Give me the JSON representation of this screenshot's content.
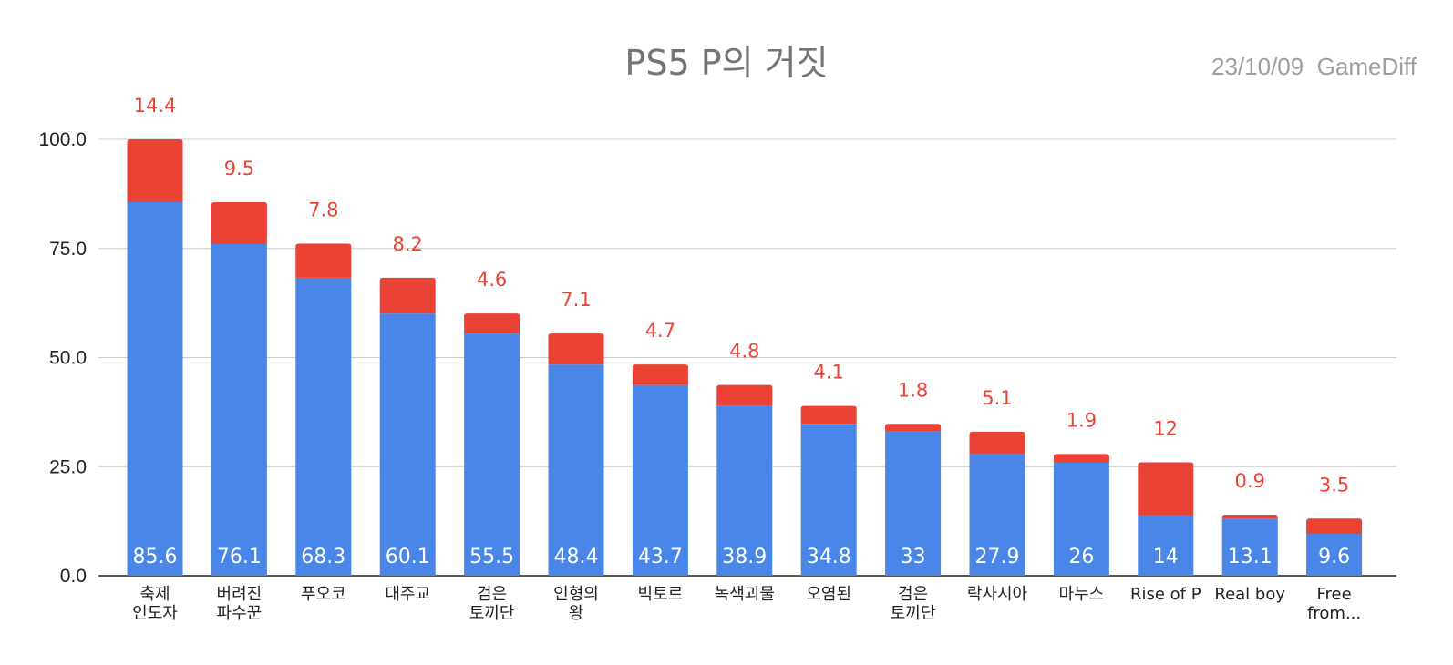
{
  "chart_data": {
    "type": "bar",
    "stacked": true,
    "title": "PS5 P의 거짓",
    "note": "23/10/09  GameDiff",
    "categories": [
      [
        "축제",
        "인도자"
      ],
      [
        "버려진",
        "파수꾼"
      ],
      [
        "푸오코"
      ],
      [
        "대주교"
      ],
      [
        "검은",
        "토끼단"
      ],
      [
        "인형의",
        "왕"
      ],
      [
        "빅토르"
      ],
      [
        "녹색괴물"
      ],
      [
        "오염된"
      ],
      [
        "검은",
        "토끼단"
      ],
      [
        "락사시아"
      ],
      [
        "마누스"
      ],
      [
        "Rise of P"
      ],
      [
        "Real boy"
      ],
      [
        "Free",
        "from..."
      ]
    ],
    "series": [
      {
        "color": "#4a86e8",
        "values": [
          85.6,
          76.1,
          68.3,
          60.1,
          55.5,
          48.4,
          43.7,
          38.9,
          34.8,
          33,
          27.9,
          26,
          14,
          13.1,
          9.6
        ],
        "labels": [
          "85.6",
          "76.1",
          "68.3",
          "60.1",
          "55.5",
          "48.4",
          "43.7",
          "38.9",
          "34.8",
          "33",
          "27.9",
          "26",
          "14",
          "13.1",
          "9.6"
        ]
      },
      {
        "color": "#ea4335",
        "values": [
          14.4,
          9.5,
          7.8,
          8.2,
          4.6,
          7.1,
          4.7,
          4.8,
          4.1,
          1.8,
          5.1,
          1.9,
          12,
          0.9,
          3.5
        ],
        "labels": [
          "14.4",
          "9.5",
          "7.8",
          "8.2",
          "4.6",
          "7.1",
          "4.7",
          "4.8",
          "4.1",
          "1.8",
          "5.1",
          "1.9",
          "12",
          "0.9",
          "3.5"
        ]
      }
    ],
    "yticks": [
      "0.0",
      "25.0",
      "50.0",
      "75.0",
      "100.0"
    ],
    "ylim": [
      0,
      100
    ],
    "grid": true
  }
}
